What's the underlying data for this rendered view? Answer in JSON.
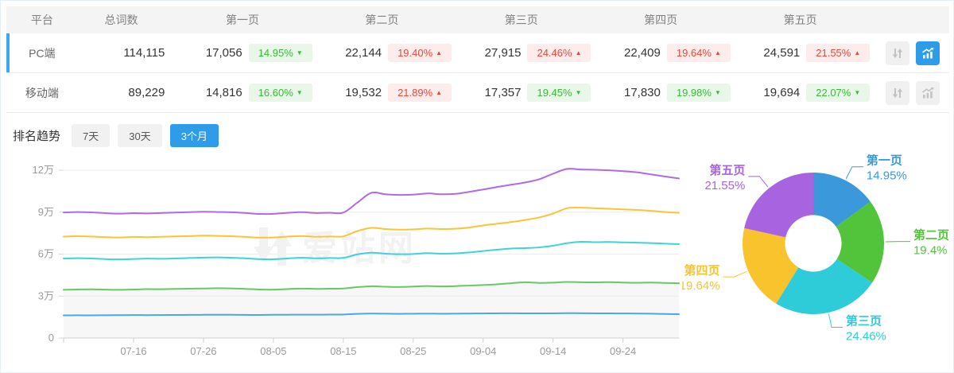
{
  "colors": {
    "accent_blue": "#2e9ce8",
    "selected_row_bar": "#3fa6f3",
    "up_text": "#e6493c",
    "up_bg": "#fdecec",
    "down_text": "#3cb83c",
    "down_bg": "#e9f7e9",
    "watermark_gray": "#f2f2f2"
  },
  "table": {
    "columns": [
      "平台",
      "总词数",
      "第一页",
      "第二页",
      "第三页",
      "第四页",
      "第五页"
    ],
    "rows": [
      {
        "platform": "PC端",
        "total": "114,115",
        "selected": true,
        "chart_active": true,
        "pages": [
          {
            "count": "17,056",
            "pct": "14.95%",
            "dir": "down"
          },
          {
            "count": "22,144",
            "pct": "19.40%",
            "dir": "up"
          },
          {
            "count": "27,915",
            "pct": "24.46%",
            "dir": "up"
          },
          {
            "count": "22,409",
            "pct": "19.64%",
            "dir": "up"
          },
          {
            "count": "24,591",
            "pct": "21.55%",
            "dir": "up"
          }
        ]
      },
      {
        "platform": "移动端",
        "total": "89,229",
        "selected": false,
        "chart_active": false,
        "pages": [
          {
            "count": "14,816",
            "pct": "16.60%",
            "dir": "down"
          },
          {
            "count": "19,532",
            "pct": "21.89%",
            "dir": "up"
          },
          {
            "count": "17,357",
            "pct": "19.45%",
            "dir": "down"
          },
          {
            "count": "17,830",
            "pct": "19.98%",
            "dir": "down"
          },
          {
            "count": "19,694",
            "pct": "22.07%",
            "dir": "down"
          }
        ]
      }
    ]
  },
  "trend": {
    "label": "排名趋势",
    "tabs": [
      {
        "label": "7天",
        "active": false
      },
      {
        "label": "30天",
        "active": false
      },
      {
        "label": "3个月",
        "active": true
      }
    ]
  },
  "watermark": "爱站网",
  "chart_data": [
    {
      "type": "line",
      "title": "PC端排名趋势(3个月)",
      "x": [
        "07-06",
        "07-08",
        "07-10",
        "07-12",
        "07-14",
        "07-16",
        "07-18",
        "07-20",
        "07-22",
        "07-24",
        "07-26",
        "07-28",
        "07-30",
        "08-01",
        "08-03",
        "08-05",
        "08-07",
        "08-09",
        "08-11",
        "08-13",
        "08-15",
        "08-17",
        "08-19",
        "08-21",
        "08-23",
        "08-25",
        "08-27",
        "08-29",
        "08-31",
        "09-02",
        "09-04",
        "09-06",
        "09-08",
        "09-10",
        "09-12",
        "09-14",
        "09-16",
        "09-18",
        "09-20",
        "09-22",
        "09-24",
        "09-26",
        "09-28",
        "09-30",
        "10-02"
      ],
      "x_tick_labels": [
        "07-16",
        "07-26",
        "08-05",
        "08-15",
        "08-25",
        "09-04",
        "09-14",
        "09-24"
      ],
      "x_tick_indices": [
        5,
        10,
        15,
        20,
        25,
        30,
        35,
        40
      ],
      "y_ticks": [
        {
          "label": "0",
          "value": 0
        },
        {
          "label": "3万",
          "value": 30000
        },
        {
          "label": "6万",
          "value": 60000
        },
        {
          "label": "9万",
          "value": 90000
        },
        {
          "label": "12万",
          "value": 120000
        }
      ],
      "ylim": [
        0,
        120000
      ],
      "grid": true,
      "legend": "none",
      "series": [
        {
          "name": "第一页(累计)",
          "color": "#4da6e8",
          "area_fill": "#f1f1f1",
          "values": [
            16200,
            16250,
            16200,
            16300,
            16350,
            16400,
            16380,
            16450,
            16500,
            16550,
            16600,
            16650,
            16600,
            16550,
            16500,
            16600,
            16650,
            16700,
            16680,
            16750,
            16800,
            17250,
            17500,
            17400,
            17300,
            17380,
            17450,
            17380,
            17420,
            17500,
            17580,
            17650,
            17700,
            17640,
            17600,
            17660,
            17780,
            17720,
            17660,
            17600,
            17560,
            17520,
            17400,
            17200,
            17056
          ]
        },
        {
          "name": "第二页(累计)",
          "color": "#68c868",
          "area_fill": "#f7f7f7",
          "values": [
            34500,
            34700,
            34850,
            34600,
            34450,
            34700,
            34950,
            34900,
            35100,
            35250,
            35400,
            35600,
            35450,
            35150,
            34700,
            34600,
            35000,
            35300,
            35150,
            35250,
            35400,
            36400,
            37000,
            36700,
            36500,
            36800,
            37200,
            36900,
            37100,
            37500,
            37900,
            38400,
            39200,
            39900,
            39400,
            39600,
            40100,
            39900,
            39800,
            39950,
            39700,
            39500,
            39650,
            39400,
            39200
          ]
        },
        {
          "name": "第三页(累计)",
          "color": "#3ed2de",
          "area_fill": null,
          "values": [
            56800,
            57100,
            56900,
            56400,
            56200,
            56500,
            56800,
            56650,
            56900,
            57200,
            57500,
            57650,
            57400,
            57000,
            56400,
            56300,
            56900,
            57400,
            57000,
            57200,
            57300,
            59800,
            61000,
            60300,
            59900,
            60100,
            60700,
            60300,
            60500,
            61200,
            62200,
            63200,
            64000,
            64300,
            64800,
            66000,
            67800,
            68800,
            68500,
            68700,
            68400,
            68200,
            67900,
            67500,
            67115
          ]
        },
        {
          "name": "第四页(累计)",
          "color": "#fcc335",
          "area_fill": null,
          "values": [
            72500,
            72800,
            72550,
            72100,
            71900,
            72300,
            72100,
            72400,
            72650,
            72900,
            73200,
            73000,
            72800,
            72300,
            71800,
            71900,
            72500,
            72900,
            72400,
            72600,
            72700,
            76500,
            78800,
            77900,
            77500,
            77700,
            78300,
            77900,
            78100,
            79000,
            80500,
            81700,
            82900,
            84400,
            86200,
            89000,
            92800,
            93200,
            92800,
            92400,
            92000,
            91600,
            90900,
            90100,
            89524
          ]
        },
        {
          "name": "第五页(累计)",
          "color": "#b16ae4",
          "area_fill": null,
          "values": [
            89800,
            90100,
            89850,
            89300,
            88900,
            89300,
            89100,
            89400,
            89700,
            90000,
            90300,
            90100,
            89900,
            89400,
            88700,
            88800,
            89500,
            90000,
            89400,
            89600,
            89700,
            96800,
            103800,
            102800,
            102300,
            102500,
            103400,
            102800,
            103100,
            104500,
            106200,
            108000,
            109600,
            111200,
            113500,
            117500,
            120900,
            120500,
            120300,
            119900,
            119300,
            118500,
            117000,
            115500,
            114115
          ]
        }
      ]
    },
    {
      "type": "pie",
      "title": "PC端各页占比",
      "labels": [
        "第一页",
        "第二页",
        "第三页",
        "第四页",
        "第五页"
      ],
      "values": [
        14.95,
        19.4,
        24.46,
        19.64,
        21.55
      ],
      "display_values": [
        "14.95%",
        "19.4%",
        "24.46%",
        "19.64%",
        "21.55%"
      ],
      "colors": [
        "#3a98db",
        "#52c43c",
        "#2ecbd8",
        "#f9c32e",
        "#a864e0"
      ],
      "start_angle": "top",
      "direction": "clockwise",
      "inner_radius_ratio": 0.4,
      "legend": "callout-labels"
    }
  ]
}
